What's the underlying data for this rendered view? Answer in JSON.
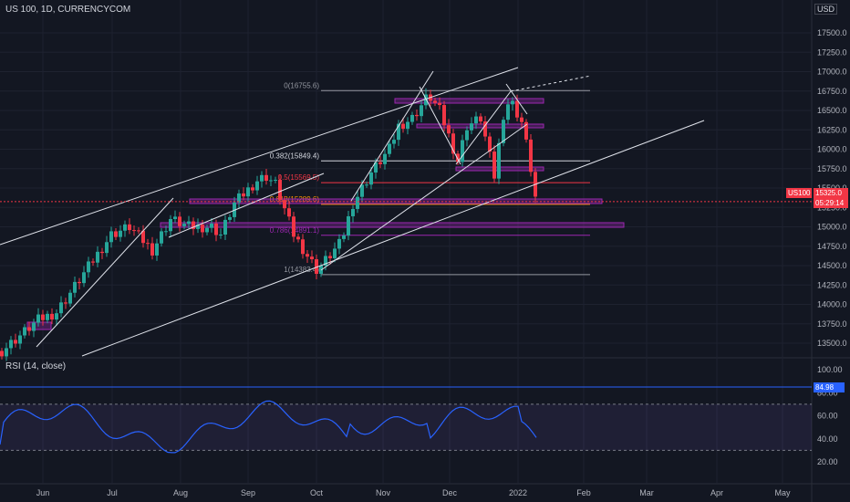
{
  "header": {
    "symbol_title": "US 100, 1D, CURRENCYCOM",
    "currency": "USD"
  },
  "rsi": {
    "title": "RSI (14, close)",
    "levels": [
      "100.00",
      "80.00",
      "60.00",
      "40.00",
      "20.00"
    ],
    "last_value": "84.98"
  },
  "price_axis": {
    "ticks": [
      "17500.0",
      "17250.0",
      "17000.0",
      "16750.0",
      "16500.0",
      "16250.0",
      "16000.0",
      "15750.0",
      "15500.0",
      "15250.0",
      "15000.0",
      "14750.0",
      "14500.0",
      "14250.0",
      "14000.0",
      "13750.0",
      "13500.0"
    ],
    "current_price": "15325.0",
    "countdown": "05:29:14",
    "symbol_tag": "US100"
  },
  "time_axis": {
    "labels": [
      "Jun",
      "Jul",
      "Aug",
      "Sep",
      "Oct",
      "Nov",
      "Dec",
      "2022",
      "Feb",
      "Mar",
      "Apr",
      "May"
    ]
  },
  "fib_levels": [
    {
      "label": "0(16755.6)",
      "price": 16755.6,
      "color": "#9598a1"
    },
    {
      "label": "0.382(15849.4)",
      "price": 15849.4,
      "color": "#d1d4dc"
    },
    {
      "label": "0.5(15569.5)",
      "price": 15569.5,
      "color": "#f23645"
    },
    {
      "label": "0.618(15289.6)",
      "price": 15289.6,
      "color": "#ff9800"
    },
    {
      "label": "0.786(14891.1)",
      "price": 14891.1,
      "color": "#9c27b0"
    },
    {
      "label": "1(14383.4)",
      "price": 14383.4,
      "color": "#9598a1"
    }
  ],
  "colors": {
    "bg": "#131722",
    "up": "#26a69a",
    "down": "#f23645",
    "rsi_line": "#2962ff",
    "zone": "#9c27b0",
    "grid": "#1e2230"
  }
}
